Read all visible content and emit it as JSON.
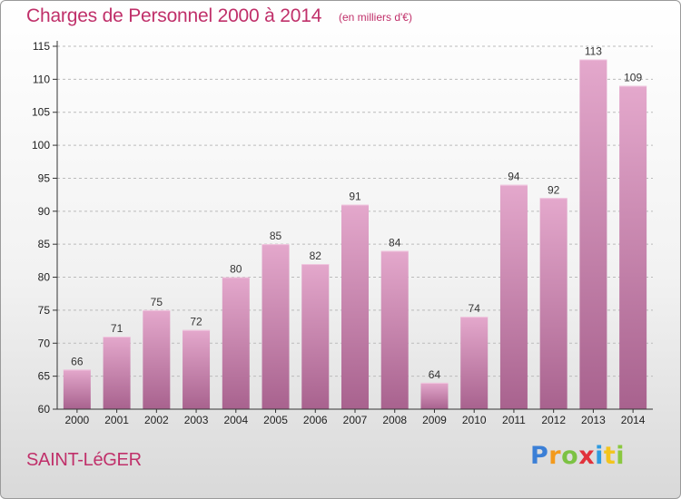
{
  "header": {
    "title": "Charges de Personnel 2000 à 2014",
    "subtitle": "(en milliers d'€)"
  },
  "footer": {
    "town": "SAINT-LéGER",
    "logo_letters": [
      "P",
      "r",
      "o",
      "x",
      "i",
      "t",
      "i"
    ]
  },
  "colors": {
    "accent": "#c0306a",
    "bar_top": "#e4a8cc",
    "bar_bottom": "#a8628e",
    "grid": "#bbbbbb",
    "axis_text": "#222222"
  },
  "chart_data": {
    "type": "bar",
    "title": "Charges de Personnel 2000 à 2014",
    "subtitle": "(en milliers d'€)",
    "xlabel": "",
    "ylabel": "",
    "categories": [
      "2000",
      "2001",
      "2002",
      "2003",
      "2004",
      "2005",
      "2006",
      "2007",
      "2008",
      "2009",
      "2010",
      "2011",
      "2012",
      "2013",
      "2014"
    ],
    "values": [
      66,
      71,
      75,
      72,
      80,
      85,
      82,
      91,
      84,
      64,
      74,
      94,
      92,
      113,
      109
    ],
    "ylim": [
      60,
      115
    ],
    "yticks": [
      60,
      65,
      70,
      75,
      80,
      85,
      90,
      95,
      100,
      105,
      110,
      115
    ],
    "grid": "horizontal dashed",
    "legend": "none"
  }
}
